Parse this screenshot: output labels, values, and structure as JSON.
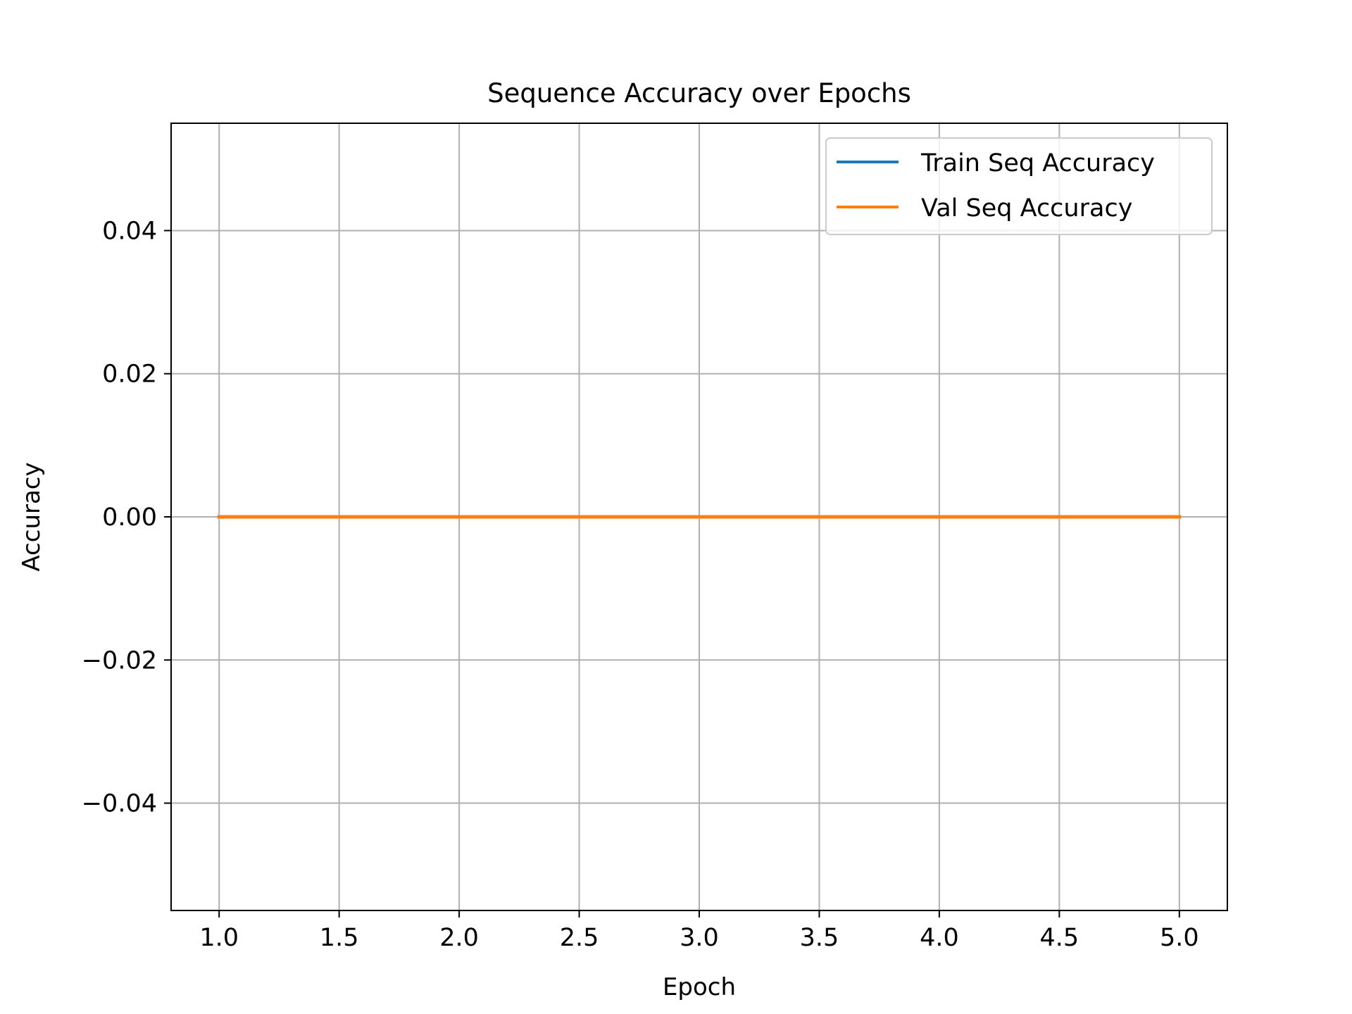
{
  "chart_data": {
    "type": "line",
    "title": "Sequence Accuracy over Epochs",
    "xlabel": "Epoch",
    "ylabel": "Accuracy",
    "xlim": [
      0.8,
      5.2
    ],
    "ylim": [
      -0.055,
      0.055
    ],
    "xticks": [
      "1.0",
      "1.5",
      "2.0",
      "2.5",
      "3.0",
      "3.5",
      "4.0",
      "4.5",
      "5.0"
    ],
    "yticks": [
      "0.04",
      "0.02",
      "0.00",
      "−0.02",
      "−0.04"
    ],
    "grid": true,
    "legend_position": "top-right",
    "x": [
      1,
      2,
      3,
      4,
      5
    ],
    "series": [
      {
        "name": "Train Seq Accuracy",
        "color": "#1f77b4",
        "values": [
          0,
          0,
          0,
          0,
          0
        ]
      },
      {
        "name": "Val Seq Accuracy",
        "color": "#ff7f0e",
        "values": [
          0,
          0,
          0,
          0,
          0
        ]
      }
    ]
  }
}
